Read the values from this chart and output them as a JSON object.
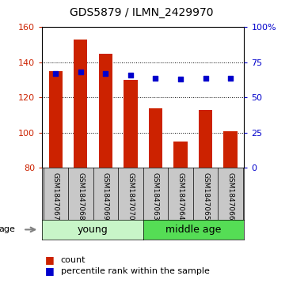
{
  "title": "GDS5879 / ILMN_2429970",
  "samples": [
    "GSM1847067",
    "GSM1847068",
    "GSM1847069",
    "GSM1847070",
    "GSM1847063",
    "GSM1847064",
    "GSM1847065",
    "GSM1847066"
  ],
  "counts": [
    135,
    153,
    145,
    130,
    114,
    95,
    113,
    101
  ],
  "percentiles": [
    67,
    68,
    67,
    66,
    64,
    63,
    64,
    64
  ],
  "bar_color": "#cc2200",
  "dot_color": "#0000cc",
  "ylim_left": [
    80,
    160
  ],
  "ylim_right": [
    0,
    100
  ],
  "yticks_left": [
    80,
    100,
    120,
    140,
    160
  ],
  "yticks_right": [
    0,
    25,
    50,
    75,
    100
  ],
  "ytick_labels_right": [
    "0",
    "25",
    "50",
    "75",
    "100%"
  ],
  "group_young_color": "#c8f5c8",
  "group_middle_color": "#55dd55",
  "age_label": "age",
  "legend_count_label": "count",
  "legend_pct_label": "percentile rank within the sample",
  "bar_width": 0.55,
  "background_color": "#ffffff",
  "label_area_color": "#c8c8c8",
  "grid_lines": [
    100,
    120,
    140
  ],
  "n_young": 4,
  "n_middle": 4
}
